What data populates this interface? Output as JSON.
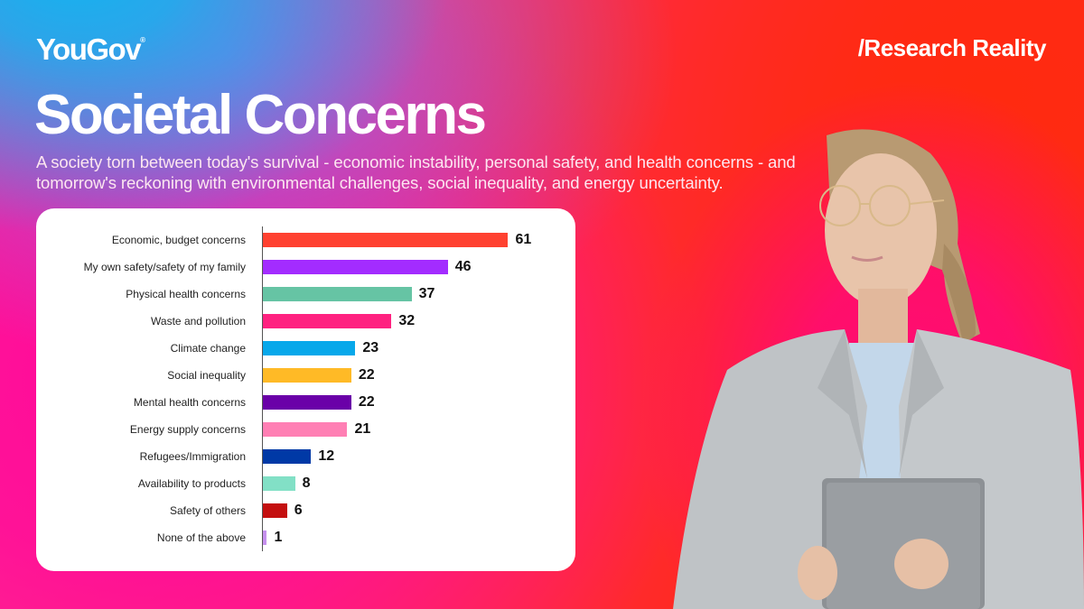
{
  "brand": {
    "logo": "YouGov",
    "logo_mark": "®",
    "tagline": "/Research Reality"
  },
  "header": {
    "title": "Societal Concerns",
    "subtitle": "A society torn between today's survival - economic instability, personal safety, and health concerns - and tomorrow's reckoning with environmental challenges, social inequality, and energy uncertainty."
  },
  "photo": {
    "description": "woman-with-glasses-holding-tablet"
  },
  "chart_data": {
    "type": "bar",
    "orientation": "horizontal",
    "title": "Societal Concerns",
    "xlabel": "",
    "ylabel": "",
    "grid": false,
    "legend": null,
    "xlim": [
      0,
      61
    ],
    "categories": [
      "Economic, budget concerns",
      "My own safety/safety of my family",
      "Physical health concerns",
      "Waste and pollution",
      "Climate change",
      "Social inequality",
      "Mental health concerns",
      "Energy supply concerns",
      "Refugees/Immigration",
      "Availability to products",
      "Safety of others",
      "None of the above"
    ],
    "values": [
      61,
      46,
      37,
      32,
      23,
      22,
      22,
      21,
      12,
      8,
      6,
      1
    ],
    "colors": [
      "#ff4130",
      "#a32cff",
      "#66c4a4",
      "#ff2280",
      "#08a8ea",
      "#ffba26",
      "#6a00a8",
      "#ff7fb4",
      "#0039a6",
      "#82e0c6",
      "#c40f0f",
      "#c690ee"
    ],
    "data_labels": [
      "61",
      "46",
      "37",
      "32",
      "23",
      "22",
      "22",
      "21",
      "12",
      "8",
      "6",
      "1"
    ]
  }
}
